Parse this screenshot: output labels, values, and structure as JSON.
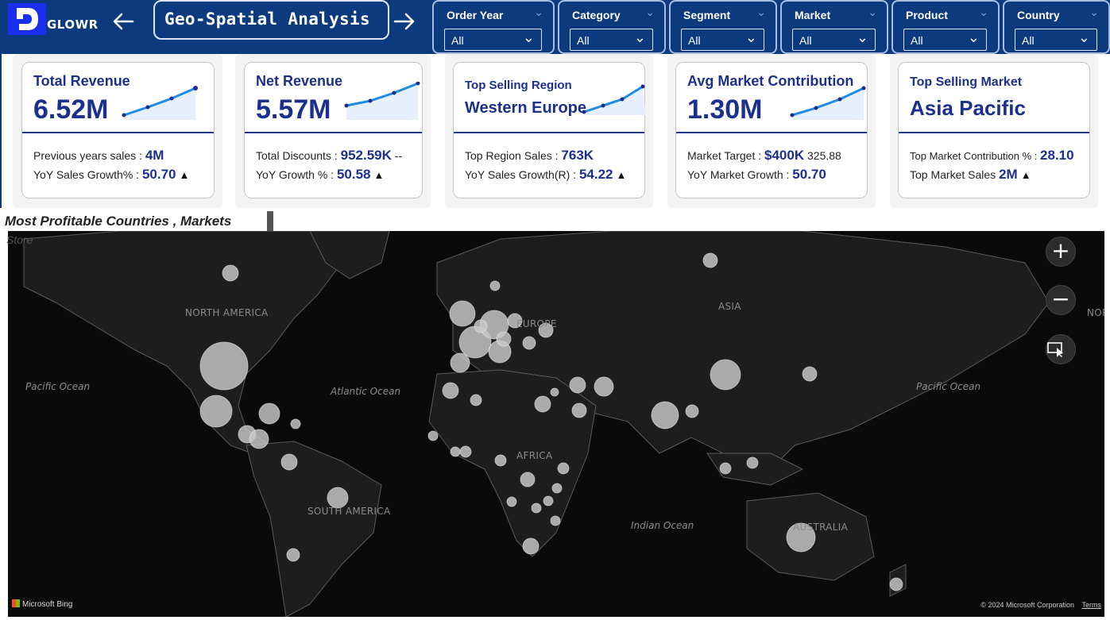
{
  "header": {
    "logo_text": "GLOWR",
    "title": "Geo-Spatial Analysis",
    "back_icon": "arrow-left-icon",
    "forward_icon": "arrow-right-icon",
    "background": "#0b3a7e"
  },
  "filters": [
    {
      "label": "Order Year",
      "value": "All"
    },
    {
      "label": "Category",
      "value": "All"
    },
    {
      "label": "Segment",
      "value": "All"
    },
    {
      "label": "Market",
      "value": "All"
    },
    {
      "label": "Product",
      "value": "All"
    },
    {
      "label": "Country",
      "value": "All"
    }
  ],
  "kpis": [
    {
      "title": "Total Revenue",
      "value": "6.52M",
      "line1_label": "Previous years sales : ",
      "line1_value": "4M",
      "line1_extra": "",
      "line2_label": "YoY Sales Growth% : ",
      "line2_value": "50.70",
      "line2_icon": "▲"
    },
    {
      "title": "Net Revenue",
      "value": "5.57M",
      "line1_label": "Total Discounts : ",
      "line1_value": "952.59K",
      "line1_extra": " --",
      "line2_label": "YoY Growth % : ",
      "line2_value": "50.58",
      "line2_icon": "▲"
    },
    {
      "title": "Top Selling Region",
      "value": "Western Europe",
      "line1_label": "Top Region Sales : ",
      "line1_value": "763K",
      "line1_extra": "",
      "line2_label": "YoY Sales Growth(R) : ",
      "line2_value": "54.22",
      "line2_icon": "▲"
    },
    {
      "title": "Avg Market Contribution",
      "value": "1.30M",
      "line1_label": "Market Target : ",
      "line1_value": "$400K",
      "line1_extra": " 325.88",
      "line2_label": "YoY Market Growth : ",
      "line2_value": "50.70",
      "line2_icon": ""
    },
    {
      "title": "Top Selling Market",
      "value": "Asia Pacific",
      "line1_label": "Top Market Contribution % : ",
      "line1_value": "28.10",
      "line1_extra": "",
      "line2_label": "Top Market Sales ",
      "line2_value": "2M",
      "line2_icon": "▲"
    }
  ],
  "map_section": {
    "title": "Most Profitable  Countries , Markets",
    "subtitle": "Store",
    "continents": [
      "NORTH AMERICA",
      "EUROPE",
      "ASIA",
      "AFRICA",
      "SOUTH AMERICA",
      "AUSTRALIA",
      "NORTH"
    ],
    "oceans": [
      "Pacific Ocean",
      "Atlantic Ocean",
      "Pacific Ocean",
      "Indian Ocean"
    ],
    "zoom_in_icon": "plus-icon",
    "zoom_out_icon": "minus-icon",
    "select_icon": "select-cursor-icon",
    "attribution": "Microsoft Bing",
    "copyright": "© 2024 Microsoft Corporation",
    "terms": "Terms"
  }
}
